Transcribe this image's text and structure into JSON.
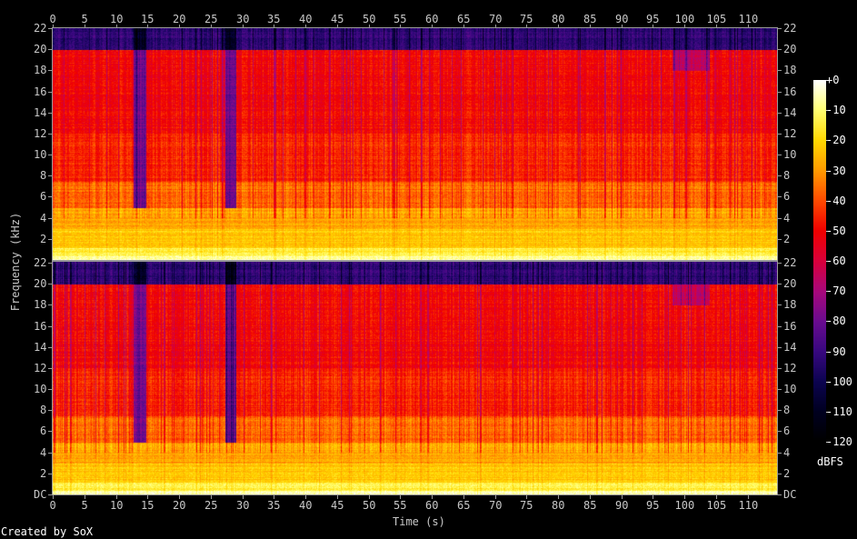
{
  "chart_data": {
    "type": "heatmap",
    "title": "",
    "xlabel": "Time (s)",
    "ylabel": "Frequency (kHz)",
    "credit": "Created by SoX",
    "channels": 2,
    "xlim": [
      0,
      114.7
    ],
    "ylim": [
      0,
      22
    ],
    "x_ticks": [
      "0",
      "5",
      "10",
      "15",
      "20",
      "25",
      "30",
      "35",
      "40",
      "45",
      "50",
      "55",
      "60",
      "65",
      "70",
      "75",
      "80",
      "85",
      "90",
      "95",
      "100",
      "105",
      "110"
    ],
    "y_ticks_upper": [
      "22",
      "20",
      "18",
      "16",
      "14",
      "12",
      "10",
      "8",
      "6",
      "4",
      "2"
    ],
    "y_ticks_lower": [
      "22",
      "20",
      "18",
      "16",
      "14",
      "12",
      "10",
      "8",
      "6",
      "4",
      "2",
      "DC"
    ],
    "colorbar": {
      "label": "dBFS",
      "range": [
        -120,
        0
      ],
      "ticks": [
        "+0",
        "-10",
        "-20",
        "-30",
        "-40",
        "-50",
        "-60",
        "-70",
        "-80",
        "-90",
        "-100",
        "-110",
        "-120"
      ],
      "colors": [
        "#ffffff",
        "#ffff70",
        "#ffd800",
        "#ff9a00",
        "#ff4a00",
        "#f00000",
        "#d8003c",
        "#a8087c",
        "#6a0c90",
        "#380880",
        "#0c0450",
        "#000020",
        "#000000"
      ]
    },
    "spectral_cutoff_khz": 20,
    "quiet_intervals_s": [
      [
        12.8,
        14.8
      ],
      [
        27.3,
        29.0
      ]
    ]
  }
}
